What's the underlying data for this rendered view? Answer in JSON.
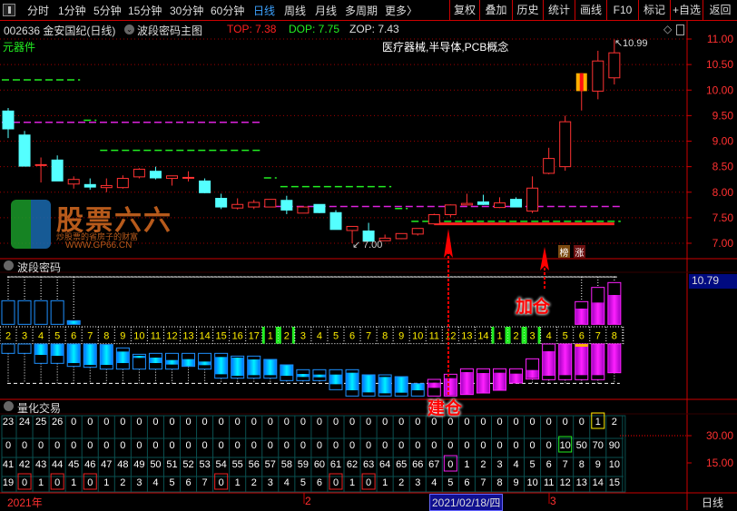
{
  "toolbar": {
    "periods": [
      "分时",
      "1分钟",
      "5分钟",
      "15分钟",
      "30分钟",
      "60分钟",
      "日线",
      "周线",
      "月线",
      "多周期",
      "更多〉"
    ],
    "active": "日线",
    "actions": [
      "复权",
      "叠加",
      "历史",
      "统计",
      "画线",
      "F10",
      "标记",
      "+自选",
      "返回"
    ]
  },
  "info": {
    "code_name": "002636 金安国纪(日线)",
    "indicator": "波段密码主图",
    "top": "TOP: 7.38",
    "dop": "DOP: 7.75",
    "zop": "ZOP: 7.43",
    "sector": "元器件",
    "concepts": "医疗器械,半导体,PCB概念"
  },
  "colors": {
    "up": "#ff3232",
    "down": "#54ffff",
    "top": "#ff2020",
    "dop": "#22ee22",
    "zop": "#dddddd",
    "grid": "#a00000",
    "accent": "#3da2ff"
  },
  "main": {
    "price_ticks": [
      "11.00",
      "10.50",
      "10.00",
      "9.50",
      "9.00",
      "8.50",
      "8.00",
      "7.50",
      "7.00"
    ],
    "max_label": "10.99",
    "min_label": "7.00",
    "badges": [
      "榜",
      "涨"
    ],
    "candles": [
      [
        9.59,
        9.24,
        9.65,
        9.06
      ],
      [
        9.12,
        8.51,
        9.2,
        8.51
      ],
      [
        8.54,
        8.54,
        8.68,
        8.19
      ],
      [
        8.63,
        8.22,
        8.72,
        8.22
      ],
      [
        8.16,
        8.25,
        8.31,
        8.07
      ],
      [
        8.15,
        8.1,
        8.27,
        8.05
      ],
      [
        8.09,
        8.13,
        8.27,
        8.0
      ],
      [
        8.09,
        8.27,
        8.33,
        8.07
      ],
      [
        8.3,
        8.45,
        8.47,
        8.27
      ],
      [
        8.41,
        8.28,
        8.5,
        8.25
      ],
      [
        8.27,
        8.32,
        8.32,
        8.13
      ],
      [
        8.29,
        8.29,
        8.41,
        8.21
      ],
      [
        8.22,
        7.99,
        8.27,
        7.98
      ],
      [
        7.88,
        7.71,
        7.97,
        7.67
      ],
      [
        7.69,
        7.76,
        7.88,
        7.66
      ],
      [
        7.71,
        7.8,
        7.85,
        7.67
      ],
      [
        7.71,
        7.86,
        7.86,
        7.71
      ],
      [
        7.84,
        7.65,
        7.93,
        7.57
      ],
      [
        7.59,
        7.71,
        7.71,
        7.59
      ],
      [
        7.76,
        7.6,
        7.76,
        7.59
      ],
      [
        7.6,
        7.27,
        7.65,
        7.27
      ],
      [
        7.25,
        7.33,
        7.33,
        7.0
      ],
      [
        7.24,
        7.04,
        7.4,
        7.04
      ],
      [
        7.05,
        7.1,
        7.17,
        7.05
      ],
      [
        7.09,
        7.19,
        7.19,
        7.08
      ],
      [
        7.18,
        7.29,
        7.29,
        7.15
      ],
      [
        7.38,
        7.56,
        7.58,
        7.37
      ],
      [
        7.56,
        7.75,
        7.76,
        7.51
      ],
      [
        7.75,
        7.78,
        7.97,
        7.75
      ],
      [
        7.81,
        7.76,
        7.95,
        7.75
      ],
      [
        7.7,
        7.79,
        7.9,
        7.69
      ],
      [
        7.86,
        7.71,
        7.9,
        7.71
      ],
      [
        7.63,
        8.08,
        8.31,
        7.59
      ],
      [
        8.37,
        8.66,
        8.87,
        8.35
      ],
      [
        8.5,
        9.38,
        9.5,
        8.42
      ],
      [
        9.98,
        10.33,
        10.33,
        9.6
      ],
      [
        9.98,
        10.57,
        10.77,
        9.82
      ],
      [
        10.24,
        10.73,
        10.99,
        10.11
      ]
    ],
    "levels": [
      {
        "price": 10.2,
        "from": 1,
        "to": 5,
        "color": "#22ee22"
      },
      {
        "price": 9.37,
        "from": 1,
        "to": 16,
        "color": "#dd22dd"
      },
      {
        "price": 9.41,
        "from": 6,
        "to": 6,
        "color": "#22ee22"
      },
      {
        "price": 8.82,
        "from": 7,
        "to": 16,
        "color": "#22ee22"
      },
      {
        "price": 8.28,
        "from": 17,
        "to": 17,
        "color": "#22ee22"
      },
      {
        "price": 8.11,
        "from": 18,
        "to": 24,
        "color": "#22ee22"
      },
      {
        "price": 7.72,
        "from": 17,
        "to": 38,
        "color": "#dd22dd"
      },
      {
        "price": 7.68,
        "from": 25,
        "to": 25,
        "color": "#22ee22"
      },
      {
        "price": 7.43,
        "from": 26,
        "to": 38,
        "color": "#22ee22"
      }
    ],
    "top_line": {
      "price": 7.38,
      "from": 27,
      "to": 38
    }
  },
  "wave": {
    "title": "波段密码",
    "value_label": "10.79",
    "build_label": "建仓",
    "add_label": "加仓",
    "numbers": [
      2,
      3,
      4,
      5,
      6,
      7,
      8,
      9,
      10,
      11,
      12,
      13,
      14,
      15,
      16,
      17,
      1,
      2,
      3,
      4,
      5,
      6,
      7,
      8,
      9,
      10,
      11,
      12,
      13,
      14,
      1,
      2,
      3,
      4,
      5,
      6,
      7,
      8
    ],
    "green_cols": [
      17,
      18,
      31,
      32,
      33
    ],
    "upper": [
      [
        1,
        111,
        33,
        null,
        null
      ],
      [
        2,
        111,
        33,
        null,
        null
      ],
      [
        3,
        111,
        33,
        null,
        null
      ],
      [
        4,
        111,
        33,
        null,
        null
      ],
      [
        5,
        45,
        33,
        45,
        33
      ],
      [
        36,
        108,
        33,
        85,
        33
      ],
      [
        37,
        155,
        33,
        105,
        33
      ],
      [
        38,
        171,
        33,
        130,
        33
      ]
    ],
    "lower": [
      [
        -32,
        -63,
        null,
        null
      ],
      [
        -32,
        -63,
        null,
        null
      ],
      [
        -32,
        -96,
        -32,
        -68
      ],
      [
        -32,
        -96,
        -32,
        -71
      ],
      [
        -32,
        -106,
        -32,
        -95
      ],
      [
        -32,
        -109,
        -32,
        -101
      ],
      [
        -34,
        -115,
        -34,
        -101
      ],
      [
        -45,
        -115,
        -57,
        -95
      ],
      [
        -66,
        -115,
        -71,
        -78
      ],
      [
        -63,
        -115,
        -77,
        -95
      ],
      [
        -63,
        -115,
        -85,
        -100
      ],
      [
        -63,
        -106,
        -82,
        -105
      ],
      [
        -63,
        -115,
        -90,
        -102
      ],
      [
        -63,
        -145,
        -75,
        -132
      ],
      [
        -72,
        -145,
        -77,
        -137
      ],
      [
        -72,
        -145,
        -83,
        -135
      ],
      [
        -83,
        -145,
        -83,
        -135
      ],
      [
        -101,
        -153,
        -101,
        -137
      ],
      [
        -117,
        -153,
        -131,
        -141
      ],
      [
        -117,
        -153,
        -133,
        -142
      ],
      [
        -117,
        -183,
        -133,
        -165
      ],
      [
        -117,
        -204,
        -127,
        -185
      ],
      [
        -134,
        -204,
        -134,
        -192
      ],
      [
        -134,
        -204,
        -141,
        -195
      ],
      [
        -140,
        -204,
        -140,
        -193
      ],
      [
        -163,
        -204,
        -163,
        -185
      ],
      [
        -149,
        -204,
        -160,
        -177
      ],
      [
        -132,
        -204,
        -145,
        -202
      ],
      [
        -114,
        -199,
        -125,
        -199
      ],
      [
        -114,
        -194,
        -128,
        -194
      ],
      [
        -114,
        -185,
        -127,
        -185
      ],
      [
        -114,
        -161,
        -130,
        -161
      ],
      [
        -81,
        -148,
        -118,
        -145
      ],
      [
        -32,
        -150,
        -56,
        -137
      ],
      [
        -32,
        -150,
        -32,
        -135
      ],
      [
        -32,
        -150,
        -40,
        -135
      ],
      [
        -32,
        -150,
        -32,
        -135
      ],
      [
        -32,
        -127,
        -32,
        -127
      ]
    ],
    "magenta_from": 27,
    "baseline": -162,
    "top_line": 190
  },
  "quant": {
    "title": "量化交易",
    "axis_ticks": [
      "30.00",
      "15.00"
    ],
    "rows": [
      [
        23,
        24,
        25,
        26,
        0,
        0,
        0,
        0,
        0,
        0,
        0,
        0,
        0,
        0,
        0,
        0,
        0,
        0,
        0,
        0,
        0,
        0,
        0,
        0,
        0,
        0,
        0,
        0,
        0,
        0,
        0,
        0,
        0,
        0,
        0,
        0,
        1,
        2
      ],
      [
        0,
        0,
        0,
        0,
        0,
        0,
        0,
        0,
        0,
        0,
        0,
        0,
        0,
        0,
        0,
        0,
        0,
        0,
        0,
        0,
        0,
        0,
        0,
        0,
        0,
        0,
        0,
        0,
        0,
        0,
        0,
        0,
        0,
        0,
        10,
        50,
        70,
        90
      ],
      [
        41,
        42,
        43,
        44,
        45,
        46,
        47,
        48,
        49,
        50,
        51,
        52,
        53,
        54,
        55,
        56,
        57,
        58,
        59,
        60,
        61,
        62,
        63,
        64,
        65,
        66,
        67,
        0,
        1,
        2,
        3,
        4,
        5,
        6,
        7,
        8,
        9,
        10
      ],
      [
        19,
        0,
        1,
        0,
        1,
        0,
        1,
        2,
        3,
        4,
        5,
        6,
        7,
        0,
        1,
        2,
        3,
        4,
        5,
        6,
        0,
        1,
        0,
        1,
        2,
        3,
        4,
        5,
        6,
        7,
        8,
        9,
        10,
        11,
        12,
        13,
        14,
        15
      ]
    ],
    "boxes": [
      {
        "row": 0,
        "col": 37,
        "color": "#ffee00"
      },
      {
        "row": 1,
        "col": 35,
        "color": "#22ee22"
      },
      {
        "row": 2,
        "col": 28,
        "color": "#ee22ee"
      },
      {
        "row": 3,
        "col": 2,
        "color": "#ee2222"
      },
      {
        "row": 3,
        "col": 4,
        "color": "#ee2222"
      },
      {
        "row": 3,
        "col": 6,
        "color": "#ee2222"
      },
      {
        "row": 3,
        "col": 14,
        "color": "#ee2222"
      },
      {
        "row": 3,
        "col": 21,
        "color": "#ee2222"
      },
      {
        "row": 3,
        "col": 23,
        "color": "#ee2222"
      }
    ]
  },
  "timeline": {
    "year": "2021年",
    "feb": "2",
    "cursor_date": "2021/02/18/四",
    "mar": "3",
    "period": "日线"
  },
  "watermark": {
    "brand": "股票六六",
    "slogan": "炒股票的省房子的财富",
    "url": "WWW.GP66.CN"
  }
}
